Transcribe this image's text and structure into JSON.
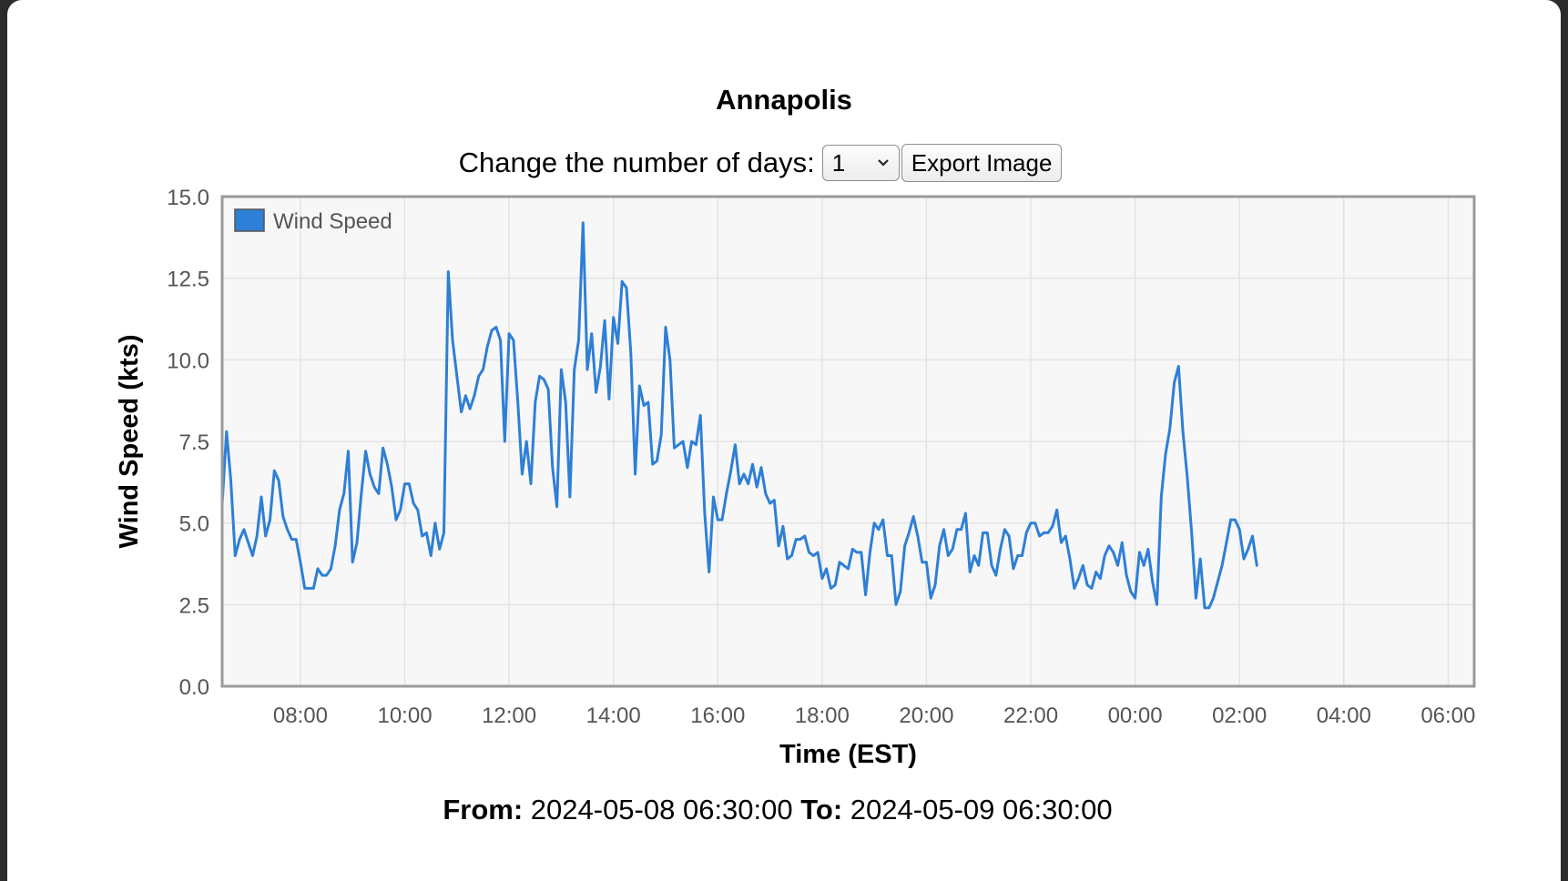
{
  "page": {
    "title": "Annapolis",
    "controls": {
      "days_label": "Change the number of days:",
      "days_value": "1",
      "export_label": "Export Image"
    },
    "footer": {
      "from_label": "From:",
      "from_value": "2024-05-08 06:30:00",
      "to_label": "To:",
      "to_value": "2024-05-09 06:30:00"
    }
  },
  "colors": {
    "line": "#2e7fd6",
    "plot_bg": "#f7f7f7",
    "grid": "#e3e3e3",
    "frame": "#9a9a9a"
  },
  "chart_data": {
    "type": "line",
    "title": "",
    "xlabel": "Time (EST)",
    "ylabel": "Wind Speed (kts)",
    "x_start": "2024-05-08 06:30",
    "x_end": "2024-05-09 06:30",
    "ylim": [
      0,
      15
    ],
    "y_ticks": [
      "0.0",
      "2.5",
      "5.0",
      "7.5",
      "10.0",
      "12.5",
      "15.0"
    ],
    "x_ticks": [
      "08:00",
      "10:00",
      "12:00",
      "14:00",
      "16:00",
      "18:00",
      "20:00",
      "22:00",
      "00:00",
      "02:00",
      "04:00",
      "06:00"
    ],
    "grid": true,
    "legend_position": "top-left",
    "series": [
      {
        "name": "Wind Speed",
        "points": [
          [
            "2024-05-08 06:30",
            5.6
          ],
          [
            "2024-05-08 06:35",
            7.8
          ],
          [
            "2024-05-08 06:40",
            6.3
          ],
          [
            "2024-05-08 06:45",
            4.0
          ],
          [
            "2024-05-08 06:50",
            4.5
          ],
          [
            "2024-05-08 06:55",
            4.8
          ],
          [
            "2024-05-08 07:05",
            4.0
          ],
          [
            "2024-05-08 07:10",
            4.6
          ],
          [
            "2024-05-08 07:15",
            5.8
          ],
          [
            "2024-05-08 07:20",
            4.6
          ],
          [
            "2024-05-08 07:25",
            5.1
          ],
          [
            "2024-05-08 07:30",
            6.6
          ],
          [
            "2024-05-08 07:35",
            6.3
          ],
          [
            "2024-05-08 07:40",
            5.2
          ],
          [
            "2024-05-08 07:45",
            4.8
          ],
          [
            "2024-05-08 07:50",
            4.5
          ],
          [
            "2024-05-08 07:55",
            4.5
          ],
          [
            "2024-05-08 08:00",
            3.8
          ],
          [
            "2024-05-08 08:05",
            3.0
          ],
          [
            "2024-05-08 08:15",
            3.0
          ],
          [
            "2024-05-08 08:20",
            3.6
          ],
          [
            "2024-05-08 08:25",
            3.4
          ],
          [
            "2024-05-08 08:30",
            3.4
          ],
          [
            "2024-05-08 08:35",
            3.6
          ],
          [
            "2024-05-08 08:40",
            4.3
          ],
          [
            "2024-05-08 08:45",
            5.4
          ],
          [
            "2024-05-08 08:50",
            5.9
          ],
          [
            "2024-05-08 08:55",
            7.2
          ],
          [
            "2024-05-08 09:00",
            3.8
          ],
          [
            "2024-05-08 09:05",
            4.4
          ],
          [
            "2024-05-08 09:10",
            5.9
          ],
          [
            "2024-05-08 09:15",
            7.2
          ],
          [
            "2024-05-08 09:20",
            6.5
          ],
          [
            "2024-05-08 09:25",
            6.1
          ],
          [
            "2024-05-08 09:30",
            5.9
          ],
          [
            "2024-05-08 09:35",
            7.3
          ],
          [
            "2024-05-08 09:40",
            6.8
          ],
          [
            "2024-05-08 09:45",
            6.1
          ],
          [
            "2024-05-08 09:50",
            5.1
          ],
          [
            "2024-05-08 09:55",
            5.4
          ],
          [
            "2024-05-08 10:00",
            6.2
          ],
          [
            "2024-05-08 10:05",
            6.2
          ],
          [
            "2024-05-08 10:10",
            5.6
          ],
          [
            "2024-05-08 10:15",
            5.4
          ],
          [
            "2024-05-08 10:20",
            4.6
          ],
          [
            "2024-05-08 10:25",
            4.7
          ],
          [
            "2024-05-08 10:30",
            4.0
          ],
          [
            "2024-05-08 10:35",
            5.0
          ],
          [
            "2024-05-08 10:40",
            4.2
          ],
          [
            "2024-05-08 10:45",
            4.7
          ],
          [
            "2024-05-08 10:50",
            12.7
          ],
          [
            "2024-05-08 10:55",
            10.6
          ],
          [
            "2024-05-08 11:00",
            9.5
          ],
          [
            "2024-05-08 11:05",
            8.4
          ],
          [
            "2024-05-08 11:10",
            8.9
          ],
          [
            "2024-05-08 11:15",
            8.5
          ],
          [
            "2024-05-08 11:20",
            8.9
          ],
          [
            "2024-05-08 11:25",
            9.5
          ],
          [
            "2024-05-08 11:30",
            9.7
          ],
          [
            "2024-05-08 11:35",
            10.4
          ],
          [
            "2024-05-08 11:40",
            10.9
          ],
          [
            "2024-05-08 11:45",
            11.0
          ],
          [
            "2024-05-08 11:50",
            10.6
          ],
          [
            "2024-05-08 11:55",
            7.5
          ],
          [
            "2024-05-08 12:00",
            10.8
          ],
          [
            "2024-05-08 12:05",
            10.6
          ],
          [
            "2024-05-08 12:10",
            8.7
          ],
          [
            "2024-05-08 12:15",
            6.5
          ],
          [
            "2024-05-08 12:20",
            7.5
          ],
          [
            "2024-05-08 12:25",
            6.2
          ],
          [
            "2024-05-08 12:30",
            8.7
          ],
          [
            "2024-05-08 12:35",
            9.5
          ],
          [
            "2024-05-08 12:40",
            9.4
          ],
          [
            "2024-05-08 12:45",
            9.1
          ],
          [
            "2024-05-08 12:50",
            6.7
          ],
          [
            "2024-05-08 12:55",
            5.5
          ],
          [
            "2024-05-08 13:00",
            9.7
          ],
          [
            "2024-05-08 13:05",
            8.7
          ],
          [
            "2024-05-08 13:10",
            5.8
          ],
          [
            "2024-05-08 13:15",
            9.7
          ],
          [
            "2024-05-08 13:20",
            10.6
          ],
          [
            "2024-05-08 13:25",
            14.2
          ],
          [
            "2024-05-08 13:30",
            9.7
          ],
          [
            "2024-05-08 13:35",
            10.8
          ],
          [
            "2024-05-08 13:40",
            9.0
          ],
          [
            "2024-05-08 13:45",
            9.8
          ],
          [
            "2024-05-08 13:50",
            11.2
          ],
          [
            "2024-05-08 13:55",
            8.8
          ],
          [
            "2024-05-08 14:00",
            11.3
          ],
          [
            "2024-05-08 14:05",
            10.5
          ],
          [
            "2024-05-08 14:10",
            12.4
          ],
          [
            "2024-05-08 14:15",
            12.2
          ],
          [
            "2024-05-08 14:20",
            10.2
          ],
          [
            "2024-05-08 14:25",
            6.5
          ],
          [
            "2024-05-08 14:30",
            9.2
          ],
          [
            "2024-05-08 14:35",
            8.6
          ],
          [
            "2024-05-08 14:40",
            8.7
          ],
          [
            "2024-05-08 14:45",
            6.8
          ],
          [
            "2024-05-08 14:50",
            6.9
          ],
          [
            "2024-05-08 14:55",
            7.7
          ],
          [
            "2024-05-08 15:00",
            11.0
          ],
          [
            "2024-05-08 15:05",
            10.0
          ],
          [
            "2024-05-08 15:10",
            7.3
          ],
          [
            "2024-05-08 15:15",
            7.4
          ],
          [
            "2024-05-08 15:20",
            7.5
          ],
          [
            "2024-05-08 15:25",
            6.7
          ],
          [
            "2024-05-08 15:30",
            7.5
          ],
          [
            "2024-05-08 15:35",
            7.4
          ],
          [
            "2024-05-08 15:40",
            8.3
          ],
          [
            "2024-05-08 15:45",
            5.3
          ],
          [
            "2024-05-08 15:50",
            3.5
          ],
          [
            "2024-05-08 15:55",
            5.8
          ],
          [
            "2024-05-08 16:00",
            5.1
          ],
          [
            "2024-05-08 16:05",
            5.1
          ],
          [
            "2024-05-08 16:10",
            5.9
          ],
          [
            "2024-05-08 16:15",
            6.6
          ],
          [
            "2024-05-08 16:20",
            7.4
          ],
          [
            "2024-05-08 16:25",
            6.2
          ],
          [
            "2024-05-08 16:30",
            6.5
          ],
          [
            "2024-05-08 16:35",
            6.2
          ],
          [
            "2024-05-08 16:40",
            6.8
          ],
          [
            "2024-05-08 16:45",
            6.1
          ],
          [
            "2024-05-08 16:50",
            6.7
          ],
          [
            "2024-05-08 16:55",
            5.9
          ],
          [
            "2024-05-08 17:00",
            5.6
          ],
          [
            "2024-05-08 17:05",
            5.7
          ],
          [
            "2024-05-08 17:10",
            4.3
          ],
          [
            "2024-05-08 17:15",
            4.9
          ],
          [
            "2024-05-08 17:20",
            3.9
          ],
          [
            "2024-05-08 17:25",
            4.0
          ],
          [
            "2024-05-08 17:30",
            4.5
          ],
          [
            "2024-05-08 17:35",
            4.5
          ],
          [
            "2024-05-08 17:40",
            4.6
          ],
          [
            "2024-05-08 17:45",
            4.1
          ],
          [
            "2024-05-08 17:50",
            4.0
          ],
          [
            "2024-05-08 17:55",
            4.1
          ],
          [
            "2024-05-08 18:00",
            3.3
          ],
          [
            "2024-05-08 18:05",
            3.6
          ],
          [
            "2024-05-08 18:10",
            3.0
          ],
          [
            "2024-05-08 18:15",
            3.1
          ],
          [
            "2024-05-08 18:20",
            3.8
          ],
          [
            "2024-05-08 18:25",
            3.7
          ],
          [
            "2024-05-08 18:30",
            3.6
          ],
          [
            "2024-05-08 18:35",
            4.2
          ],
          [
            "2024-05-08 18:40",
            4.1
          ],
          [
            "2024-05-08 18:45",
            4.1
          ],
          [
            "2024-05-08 18:50",
            2.8
          ],
          [
            "2024-05-08 18:55",
            4.1
          ],
          [
            "2024-05-08 19:00",
            5.0
          ],
          [
            "2024-05-08 19:05",
            4.8
          ],
          [
            "2024-05-08 19:10",
            5.1
          ],
          [
            "2024-05-08 19:15",
            4.0
          ],
          [
            "2024-05-08 19:20",
            4.0
          ],
          [
            "2024-05-08 19:25",
            2.5
          ],
          [
            "2024-05-08 19:30",
            2.9
          ],
          [
            "2024-05-08 19:35",
            4.3
          ],
          [
            "2024-05-08 19:40",
            4.7
          ],
          [
            "2024-05-08 19:45",
            5.2
          ],
          [
            "2024-05-08 19:50",
            4.6
          ],
          [
            "2024-05-08 19:55",
            3.8
          ],
          [
            "2024-05-08 20:00",
            3.8
          ],
          [
            "2024-05-08 20:05",
            2.7
          ],
          [
            "2024-05-08 20:10",
            3.1
          ],
          [
            "2024-05-08 20:15",
            4.3
          ],
          [
            "2024-05-08 20:20",
            4.8
          ],
          [
            "2024-05-08 20:25",
            4.0
          ],
          [
            "2024-05-08 20:30",
            4.2
          ],
          [
            "2024-05-08 20:35",
            4.8
          ],
          [
            "2024-05-08 20:40",
            4.8
          ],
          [
            "2024-05-08 20:45",
            5.3
          ],
          [
            "2024-05-08 20:50",
            3.5
          ],
          [
            "2024-05-08 20:55",
            4.0
          ],
          [
            "2024-05-08 21:00",
            3.7
          ],
          [
            "2024-05-08 21:05",
            4.7
          ],
          [
            "2024-05-08 21:10",
            4.7
          ],
          [
            "2024-05-08 21:15",
            3.7
          ],
          [
            "2024-05-08 21:20",
            3.4
          ],
          [
            "2024-05-08 21:25",
            4.2
          ],
          [
            "2024-05-08 21:30",
            4.8
          ],
          [
            "2024-05-08 21:35",
            4.6
          ],
          [
            "2024-05-08 21:40",
            3.6
          ],
          [
            "2024-05-08 21:45",
            4.0
          ],
          [
            "2024-05-08 21:50",
            4.0
          ],
          [
            "2024-05-08 21:55",
            4.7
          ],
          [
            "2024-05-08 22:00",
            5.0
          ],
          [
            "2024-05-08 22:05",
            5.0
          ],
          [
            "2024-05-08 22:10",
            4.6
          ],
          [
            "2024-05-08 22:15",
            4.7
          ],
          [
            "2024-05-08 22:20",
            4.7
          ],
          [
            "2024-05-08 22:25",
            4.9
          ],
          [
            "2024-05-08 22:30",
            5.4
          ],
          [
            "2024-05-08 22:35",
            4.4
          ],
          [
            "2024-05-08 22:40",
            4.6
          ],
          [
            "2024-05-08 22:45",
            3.9
          ],
          [
            "2024-05-08 22:50",
            3.0
          ],
          [
            "2024-05-08 22:55",
            3.3
          ],
          [
            "2024-05-08 23:00",
            3.7
          ],
          [
            "2024-05-08 23:05",
            3.1
          ],
          [
            "2024-05-08 23:10",
            3.0
          ],
          [
            "2024-05-08 23:15",
            3.5
          ],
          [
            "2024-05-08 23:20",
            3.3
          ],
          [
            "2024-05-08 23:25",
            4.0
          ],
          [
            "2024-05-08 23:30",
            4.3
          ],
          [
            "2024-05-08 23:35",
            4.1
          ],
          [
            "2024-05-08 23:40",
            3.7
          ],
          [
            "2024-05-08 23:45",
            4.4
          ],
          [
            "2024-05-08 23:50",
            3.4
          ],
          [
            "2024-05-08 23:55",
            2.9
          ],
          [
            "2024-05-09 00:00",
            2.7
          ],
          [
            "2024-05-09 00:05",
            4.1
          ],
          [
            "2024-05-09 00:10",
            3.7
          ],
          [
            "2024-05-09 00:15",
            4.2
          ],
          [
            "2024-05-09 00:20",
            3.2
          ],
          [
            "2024-05-09 00:25",
            2.5
          ],
          [
            "2024-05-09 00:30",
            5.8
          ],
          [
            "2024-05-09 00:35",
            7.1
          ],
          [
            "2024-05-09 00:40",
            7.9
          ],
          [
            "2024-05-09 00:45",
            9.3
          ],
          [
            "2024-05-09 00:50",
            9.8
          ],
          [
            "2024-05-09 00:55",
            7.8
          ],
          [
            "2024-05-09 01:00",
            6.4
          ],
          [
            "2024-05-09 01:05",
            4.7
          ],
          [
            "2024-05-09 01:10",
            2.7
          ],
          [
            "2024-05-09 01:15",
            3.9
          ],
          [
            "2024-05-09 01:20",
            2.4
          ],
          [
            "2024-05-09 01:25",
            2.4
          ],
          [
            "2024-05-09 01:30",
            2.7
          ],
          [
            "2024-05-09 01:35",
            3.2
          ],
          [
            "2024-05-09 01:40",
            3.7
          ],
          [
            "2024-05-09 01:45",
            4.4
          ],
          [
            "2024-05-09 01:50",
            5.1
          ],
          [
            "2024-05-09 01:55",
            5.1
          ],
          [
            "2024-05-09 02:00",
            4.8
          ],
          [
            "2024-05-09 02:05",
            3.9
          ],
          [
            "2024-05-09 02:10",
            4.2
          ],
          [
            "2024-05-09 02:15",
            4.6
          ],
          [
            "2024-05-09 02:20",
            3.7
          ]
        ]
      }
    ]
  }
}
